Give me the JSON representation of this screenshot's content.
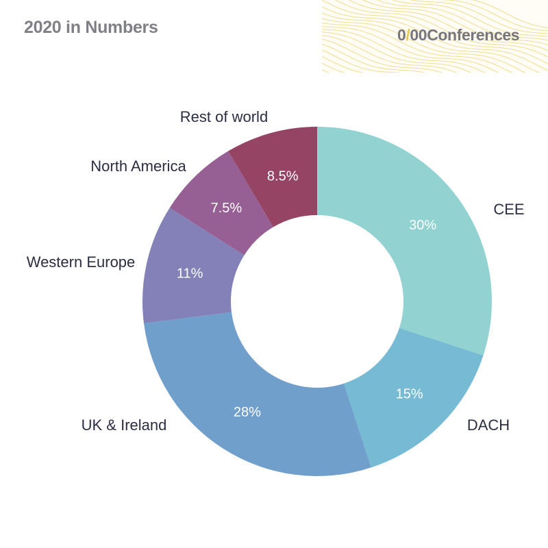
{
  "header": {
    "title": "2020 in Numbers",
    "logo_part1": "0",
    "logo_slash": "/",
    "logo_part2": "00Conferences"
  },
  "chart_data": {
    "type": "pie",
    "donut": true,
    "title": "2020 in Numbers",
    "slices": [
      {
        "label": "CEE",
        "value": 30,
        "display": "30%",
        "color": "#92d3d2"
      },
      {
        "label": "DACH",
        "value": 15,
        "display": "15%",
        "color": "#76bad4"
      },
      {
        "label": "UK & Ireland",
        "value": 28,
        "display": "28%",
        "color": "#719fcc"
      },
      {
        "label": "Western Europe",
        "value": 11,
        "display": "11%",
        "color": "#8381b7"
      },
      {
        "label": "North America",
        "value": 7.5,
        "display": "7.5%",
        "color": "#966094"
      },
      {
        "label": "Rest of world",
        "value": 8.5,
        "display": "8.5%",
        "color": "#954563"
      }
    ]
  }
}
